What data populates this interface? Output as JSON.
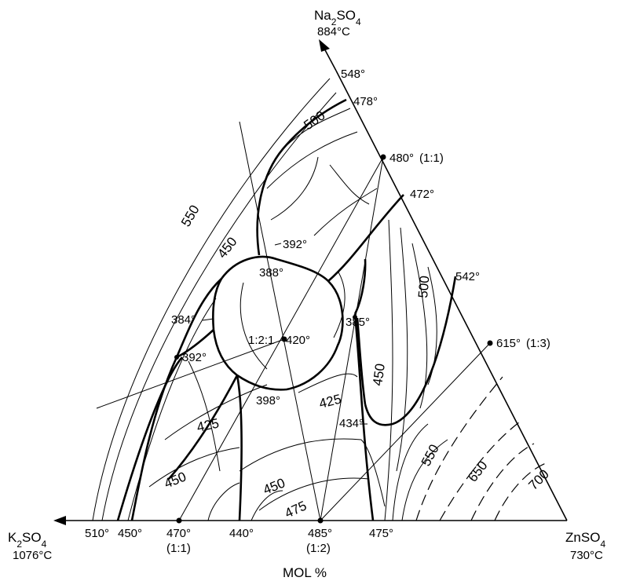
{
  "vertices": {
    "top": {
      "formula": "Na2SO4",
      "melting_point": "884°C"
    },
    "left": {
      "formula": "K2SO4",
      "melting_point": "1076°C"
    },
    "right": {
      "formula": "ZnSO4",
      "melting_point": "730°C"
    }
  },
  "axis_title": "MOL %",
  "edge_points": {
    "na_k": [],
    "na_zn": [
      {
        "temp": "548°",
        "ratio": ""
      },
      {
        "temp": "478°",
        "ratio": ""
      },
      {
        "temp": "480°",
        "ratio": "(1:1)"
      },
      {
        "temp": "472°",
        "ratio": ""
      },
      {
        "temp": "542°",
        "ratio": ""
      },
      {
        "temp": "615°",
        "ratio": "(1:3)"
      }
    ],
    "k_zn": [
      {
        "temp": "510°",
        "ratio": ""
      },
      {
        "temp": "450°",
        "ratio": ""
      },
      {
        "temp": "470°",
        "ratio": "(1:1)"
      },
      {
        "temp": "440°",
        "ratio": ""
      },
      {
        "temp": "485°",
        "ratio": "(1:2)"
      },
      {
        "temp": "475°",
        "ratio": ""
      }
    ]
  },
  "interior_points": [
    {
      "temp": "392°"
    },
    {
      "temp": "388°"
    },
    {
      "temp": "384°"
    },
    {
      "temp": "392°"
    },
    {
      "temp": "385°"
    },
    {
      "temp": "398°"
    },
    {
      "temp": "434°"
    }
  ],
  "compound_label": {
    "ratio": "1:2:1",
    "temp": "420°"
  },
  "isotherm_labels": [
    "550",
    "450",
    "500",
    "500",
    "450",
    "425",
    "425",
    "450",
    "450",
    "475",
    "550",
    "650",
    "700"
  ]
}
